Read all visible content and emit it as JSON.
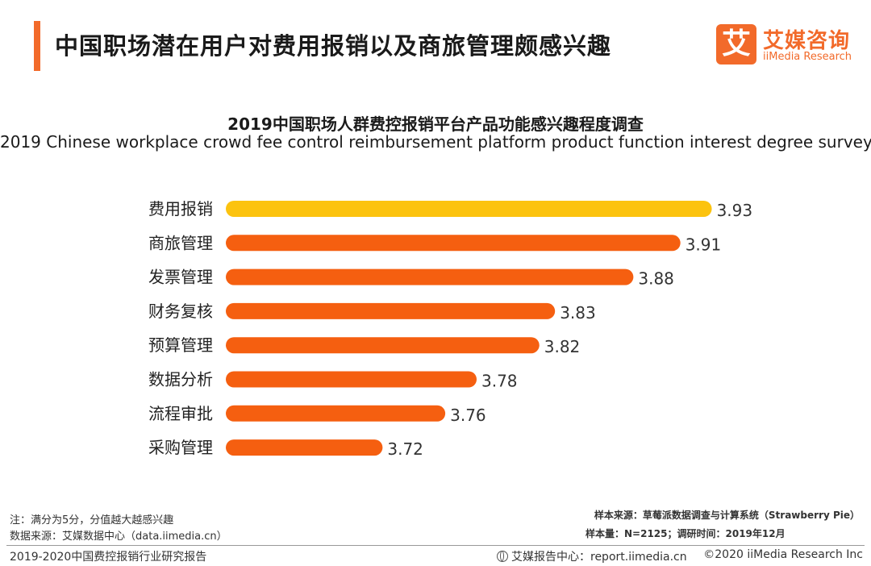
{
  "header": {
    "title": "中国职场潜在用户对费用报销以及商旅管理颇感兴趣"
  },
  "logo": {
    "mark": "艾",
    "cn": "艾媒咨询",
    "en": "iiMedia Research"
  },
  "colors": {
    "accent": "#f26a2a",
    "highlight_bar": "#fcc30f",
    "bar": "#f55f10"
  },
  "chart_data": {
    "type": "bar",
    "orientation": "horizontal",
    "title": "2019中国职场人群费控报销平台产品功能感兴趣程度调查",
    "subtitle": "2019 Chinese workplace crowd fee control reimbursement platform product function interest degree survey",
    "categories": [
      "费用报销",
      "商旅管理",
      "发票管理",
      "财务复核",
      "预算管理",
      "数据分析",
      "流程审批",
      "采购管理"
    ],
    "values": [
      3.93,
      3.91,
      3.88,
      3.83,
      3.82,
      3.78,
      3.76,
      3.72
    ],
    "value_labels": [
      "3.93",
      "3.91",
      "3.88",
      "3.83",
      "3.82",
      "3.78",
      "3.76",
      "3.72"
    ],
    "highlight_index": 0,
    "xlim": [
      3.62,
      3.94
    ],
    "xlabel": "",
    "ylabel": ""
  },
  "notes": {
    "scale_note": "注：满分为5分，分值越大越感兴趣",
    "data_source": "数据来源：艾媒数据中心（data.iimedia.cn）",
    "sample_source": "样本来源：草莓派数据调查与计算系统（Strawberry Pie）",
    "sample_size": "样本量：N=2125；调研时间：2019年12月"
  },
  "footer": {
    "report_name": "2019-2020中国费控报销行业研究报告",
    "report_center": "艾媒报告中心：report.iimedia.cn",
    "copyright": "©2020  iiMedia Research  Inc"
  }
}
